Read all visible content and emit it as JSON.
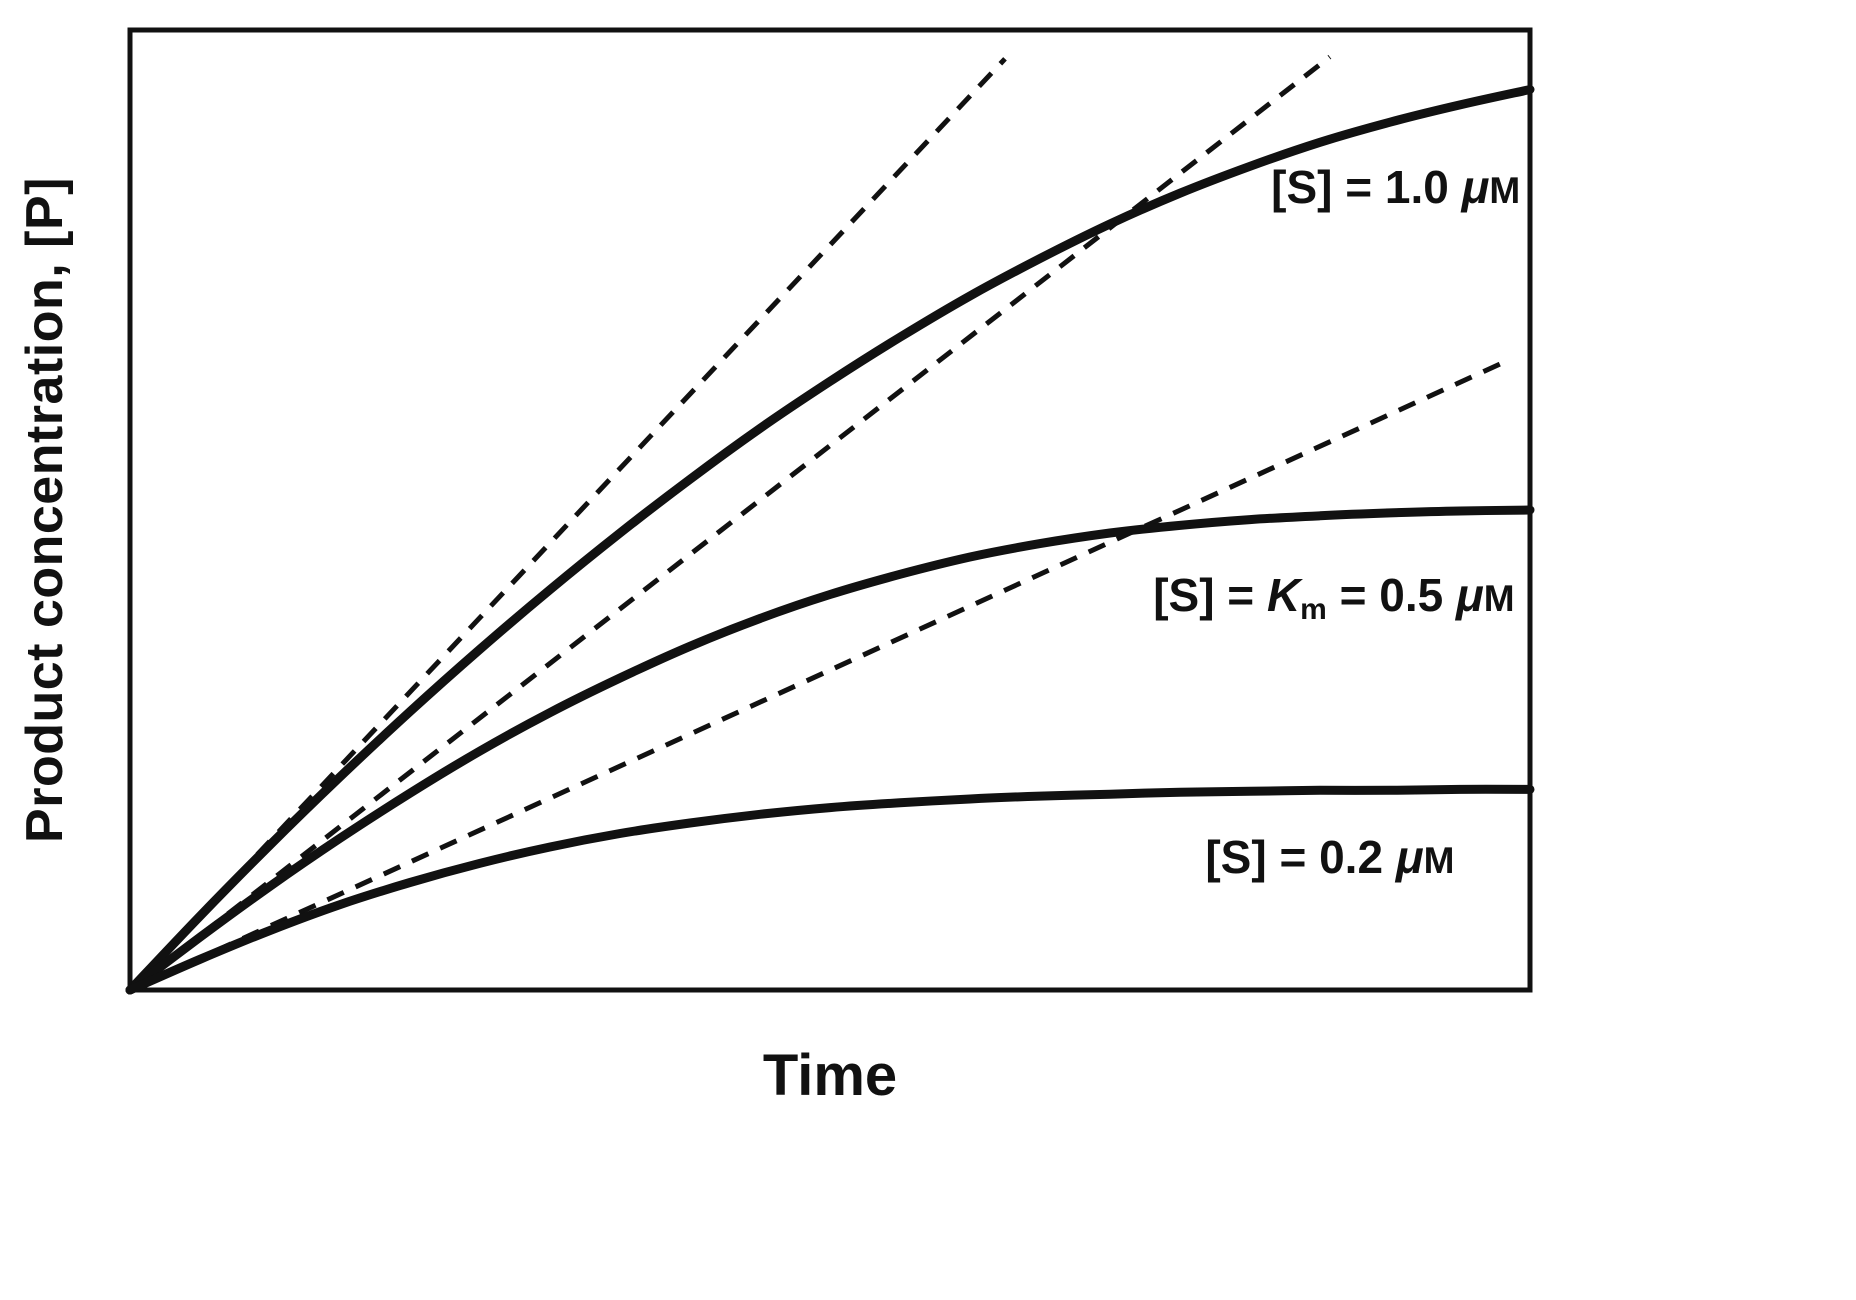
{
  "figure": {
    "background": "#ffffff",
    "ink": "#111111"
  },
  "chart_data": {
    "type": "line",
    "title": "",
    "xlabel": "Time",
    "ylabel": "Product concentration, [P]",
    "x_range": [
      0,
      100
    ],
    "y_range": [
      0,
      100
    ],
    "x_ticks": [],
    "y_ticks": [],
    "grid": false,
    "frame": "closed-box",
    "description": "Enzyme kinetics progress curves of product concentration versus time at three substrate concentrations; dashed lines are initial-velocity tangents drawn from the origin.",
    "series": [
      {
        "name": "substrate-1.0-uM",
        "label_text": "[S] = 1.0 μM",
        "label_segments": [
          {
            "text": "[S] = 1.0 ",
            "style": "normal"
          },
          {
            "text": "μ",
            "style": "mu"
          },
          {
            "text": "M",
            "style": "unit"
          }
        ],
        "label_pos": {
          "x": 99.3,
          "y": 82.0
        },
        "label_anchor": "end",
        "line_style": "solid",
        "points": [
          [
            0,
            0
          ],
          [
            5,
            7.7
          ],
          [
            10,
            15.1
          ],
          [
            15,
            22.2
          ],
          [
            20,
            29.0
          ],
          [
            25,
            35.5
          ],
          [
            30,
            41.7
          ],
          [
            35,
            47.6
          ],
          [
            40,
            53.2
          ],
          [
            45,
            58.5
          ],
          [
            50,
            63.4
          ],
          [
            55,
            68.0
          ],
          [
            60,
            72.3
          ],
          [
            65,
            76.2
          ],
          [
            70,
            79.8
          ],
          [
            75,
            83.0
          ],
          [
            80,
            85.8
          ],
          [
            85,
            88.3
          ],
          [
            90,
            90.4
          ],
          [
            95,
            92.2
          ],
          [
            100,
            93.8
          ]
        ]
      },
      {
        "name": "substrate-Km-0.5-uM",
        "label_text": "[S] = Km = 0.5 μM",
        "label_segments": [
          {
            "text": "[S] = ",
            "style": "normal"
          },
          {
            "text": "K",
            "style": "italic"
          },
          {
            "text": "m",
            "style": "sub"
          },
          {
            "text": " = 0.5 ",
            "style": "normal"
          },
          {
            "text": "μ",
            "style": "mu"
          },
          {
            "text": "M",
            "style": "unit"
          }
        ],
        "label_pos": {
          "x": 98.9,
          "y": 39.5
        },
        "label_anchor": "end",
        "line_style": "solid",
        "points": [
          [
            0,
            0
          ],
          [
            5,
            5.5
          ],
          [
            10,
            10.8
          ],
          [
            15,
            15.8
          ],
          [
            20,
            20.5
          ],
          [
            25,
            24.9
          ],
          [
            30,
            28.9
          ],
          [
            35,
            32.5
          ],
          [
            40,
            35.8
          ],
          [
            45,
            38.7
          ],
          [
            50,
            41.2
          ],
          [
            55,
            43.3
          ],
          [
            60,
            45.1
          ],
          [
            65,
            46.5
          ],
          [
            70,
            47.6
          ],
          [
            75,
            48.4
          ],
          [
            80,
            49.0
          ],
          [
            85,
            49.4
          ],
          [
            90,
            49.7
          ],
          [
            95,
            49.9
          ],
          [
            100,
            50.0
          ]
        ]
      },
      {
        "name": "substrate-0.2-uM",
        "label_text": "[S] = 0.2 μM",
        "label_segments": [
          {
            "text": "[S] = 0.2 ",
            "style": "normal"
          },
          {
            "text": "μ",
            "style": "mu"
          },
          {
            "text": "M",
            "style": "unit"
          }
        ],
        "label_pos": {
          "x": 94.6,
          "y": 12.2
        },
        "label_anchor": "end",
        "line_style": "solid",
        "points": [
          [
            0,
            0
          ],
          [
            5,
            3.2
          ],
          [
            10,
            6.2
          ],
          [
            15,
            8.9
          ],
          [
            20,
            11.2
          ],
          [
            25,
            13.2
          ],
          [
            30,
            14.9
          ],
          [
            35,
            16.3
          ],
          [
            40,
            17.4
          ],
          [
            45,
            18.3
          ],
          [
            50,
            19.0
          ],
          [
            55,
            19.5
          ],
          [
            60,
            19.9
          ],
          [
            65,
            20.2
          ],
          [
            70,
            20.4
          ],
          [
            75,
            20.6
          ],
          [
            80,
            20.7
          ],
          [
            85,
            20.8
          ],
          [
            90,
            20.8
          ],
          [
            95,
            20.9
          ],
          [
            100,
            20.9
          ]
        ]
      }
    ],
    "tangents": [
      {
        "name": "initial-velocity-tangent-1.0-uM",
        "from": [
          0,
          0
        ],
        "to": [
          62.5,
          97.0
        ]
      },
      {
        "name": "initial-velocity-tangent-0.5-uM",
        "from": [
          0,
          0
        ],
        "to": [
          85.7,
          97.2
        ]
      },
      {
        "name": "initial-velocity-tangent-0.2-uM",
        "from": [
          0,
          0
        ],
        "to": [
          98.3,
          65.5
        ]
      }
    ]
  }
}
